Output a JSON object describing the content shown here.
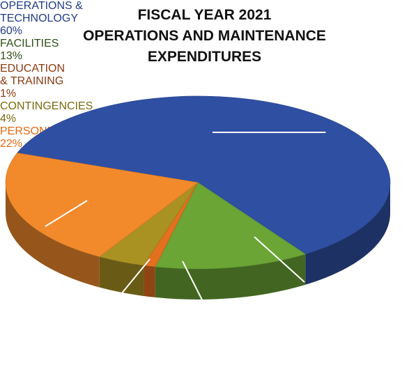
{
  "chart_data": {
    "type": "pie3d",
    "title": [
      "FISCAL YEAR 2021",
      "OPERATIONS AND MAINTENANCE",
      "EXPENDITURES"
    ],
    "categories": [
      "OPERATIONS & TECHNOLOGY",
      "FACILITIES",
      "EDUCATION & TRAINING",
      "CONTINGENCIES",
      "PERSONNEL"
    ],
    "values": [
      60,
      13,
      1,
      4,
      22
    ],
    "value_labels": [
      "60%",
      "13%",
      "1%",
      "4%",
      "22%"
    ],
    "colors": [
      "#2f4fa2",
      "#6aa535",
      "#e2701e",
      "#a99222",
      "#f28a2c"
    ]
  }
}
